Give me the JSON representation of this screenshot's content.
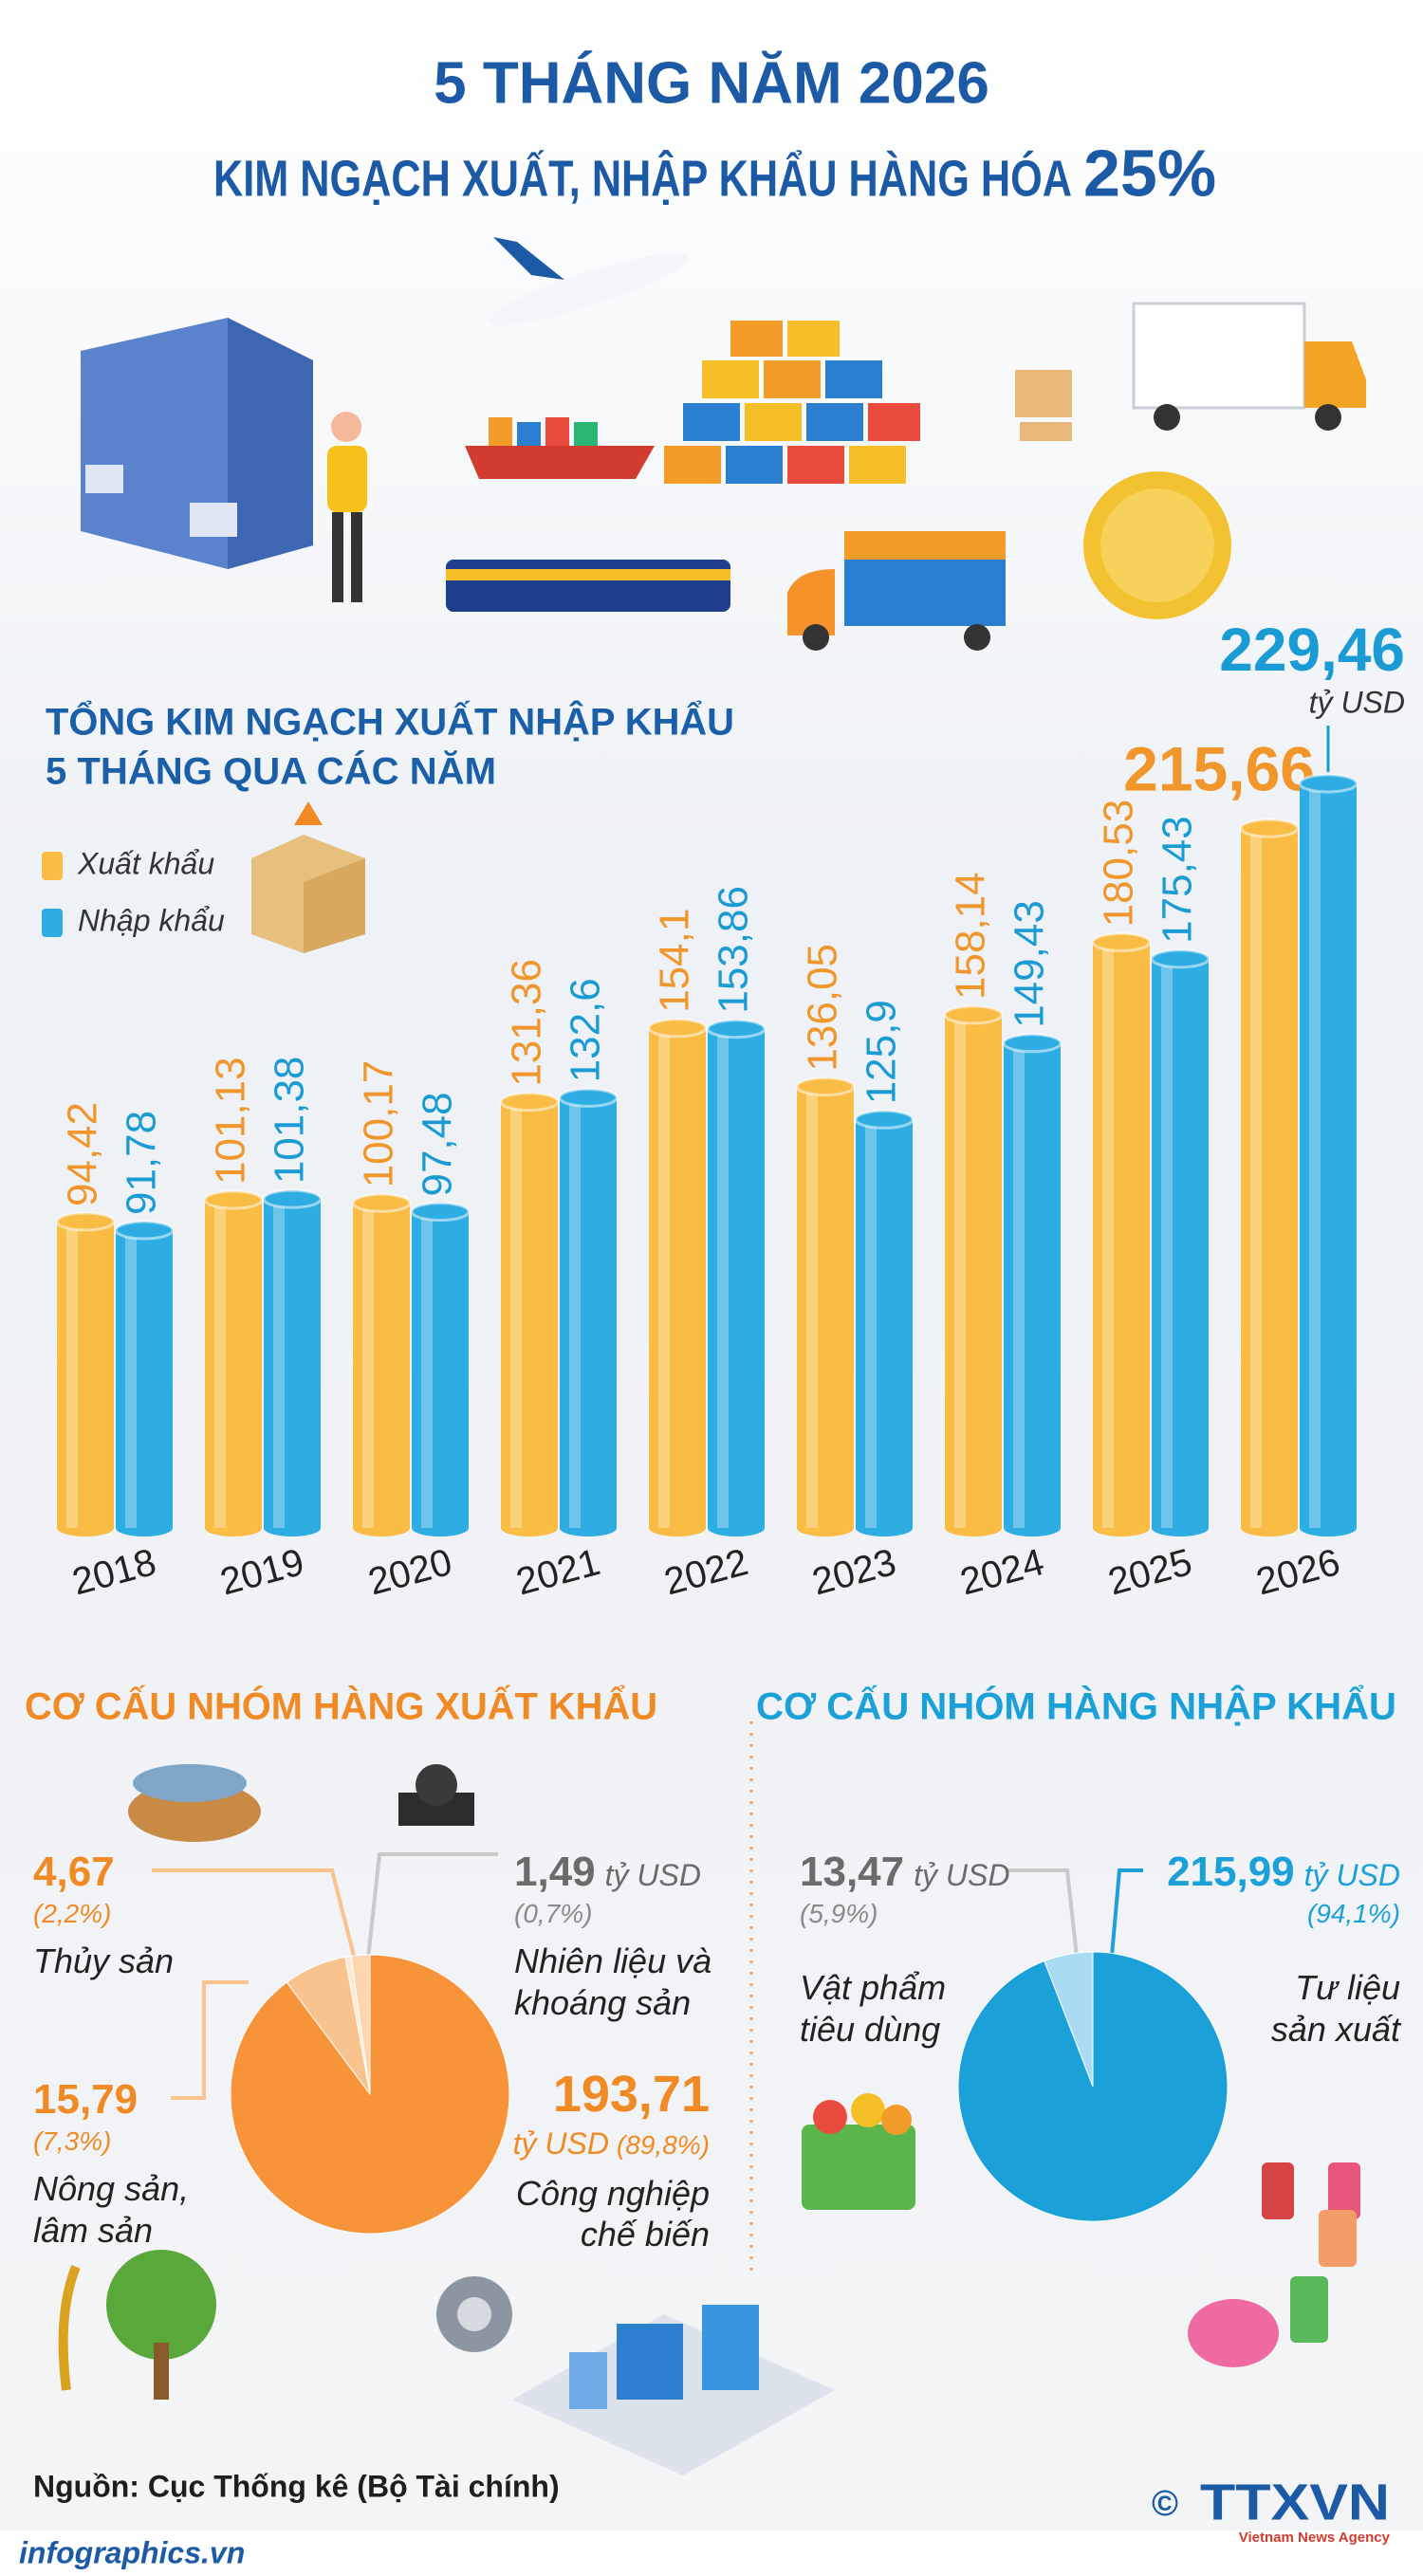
{
  "header": {
    "title": "5 THÁNG NĂM 2026",
    "headline": "KIM NGẠCH XUẤT, NHẬP KHẨU HÀNG HÓA",
    "headline_figure": "25%"
  },
  "chart_data": [
    {
      "type": "bar",
      "title": "TỔNG KIM NGẠCH XUẤT NHẬP KHẨU",
      "subtitle": "5 THÁNG QUA CÁC NĂM",
      "unit": "tỷ USD",
      "categories": [
        "2018",
        "2019",
        "2020",
        "2021",
        "2022",
        "2023",
        "2024",
        "2025",
        "2026"
      ],
      "series": [
        {
          "name": "Xuất khẩu",
          "color": "#f9bd45",
          "values": [
            94.42,
            101.13,
            100.17,
            131.36,
            154.1,
            136.05,
            158.14,
            180.53,
            215.66
          ],
          "value_labels": [
            "94,42",
            "101,13",
            "100,17",
            "131,36",
            "154,1",
            "136,05",
            "158,14",
            "180,53",
            "215,66"
          ]
        },
        {
          "name": "Nhập khẩu",
          "color": "#2eade3",
          "values": [
            91.78,
            101.38,
            97.48,
            132.6,
            153.86,
            125.9,
            149.43,
            175.43,
            229.46
          ],
          "value_labels": [
            "91,78",
            "101,38",
            "97,48",
            "132,6",
            "153,86",
            "125,9",
            "149,43",
            "175,43",
            "229,46"
          ]
        }
      ]
    },
    {
      "type": "pie",
      "title": "CƠ CẤU NHÓM HÀNG XUẤT KHẨU",
      "unit": "tỷ USD",
      "categories": [
        "Thủy sản",
        "Nhiên liệu và\nkhoáng sản",
        "Nông sản,\nlâm sản",
        "Công nghiệp\nchế biến"
      ],
      "values": [
        4.67,
        1.49,
        15.79,
        193.71
      ],
      "value_labels": [
        "4,67",
        "1,49",
        "15,79",
        "193,71"
      ],
      "share_labels": [
        "(2,2%)",
        "(0,7%)",
        "(7,3%)",
        "(89,8%)"
      ],
      "colors": [
        "#fcd6ae",
        "#fde8d2",
        "#f9c38e",
        "#f7943a"
      ]
    },
    {
      "type": "pie",
      "title": "CƠ CẤU NHÓM HÀNG NHẬP KHẨU",
      "unit": "tỷ USD",
      "categories": [
        "Vật phẩm\ntiêu dùng",
        "Tư liệu\nsản xuất"
      ],
      "values": [
        13.47,
        215.99
      ],
      "value_labels": [
        "13,47",
        "215,99"
      ],
      "share_labels": [
        "(5,9%)",
        "(94,1%)"
      ],
      "colors": [
        "#a9dcf2",
        "#1ba0d8"
      ]
    }
  ],
  "footer": {
    "source": "Nguồn: Cục Thống kê (Bộ Tài chính)",
    "site": "infographics.vn",
    "copyright": "©",
    "agency": "TTXVN",
    "agency_name": "Vietnam News Agency"
  }
}
